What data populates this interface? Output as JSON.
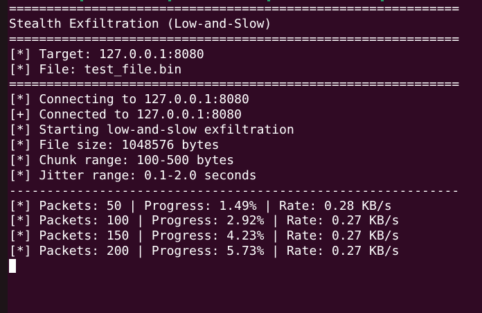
{
  "terminal": {
    "lines": [
      "============================================================",
      "Stealth Exfiltration (Low-and-Slow)",
      "============================================================",
      "[*] Target: 127.0.0.1:8080",
      "[*] File: test_file.bin",
      "============================================================",
      "[*] Connecting to 127.0.0.1:8080",
      "[+] Connected to 127.0.0.1:8080",
      "[*] Starting low-and-slow exfiltration",
      "[*] File size: 1048576 bytes",
      "[*] Chunk range: 100-500 bytes",
      "[*] Jitter range: 0.1-2.0 seconds",
      "------------------------------------------------------------",
      "[*] Packets: 50 | Progress: 1.49% | Rate: 0.28 KB/s",
      "[*] Packets: 100 | Progress: 2.92% | Rate: 0.27 KB/s",
      "[*] Packets: 150 | Progress: 4.23% | Rate: 0.27 KB/s",
      "[*] Packets: 200 | Progress: 5.73% | Rate: 0.27 KB/s"
    ],
    "colors": {
      "background": "#300a24",
      "foreground": "#ffffff"
    }
  }
}
